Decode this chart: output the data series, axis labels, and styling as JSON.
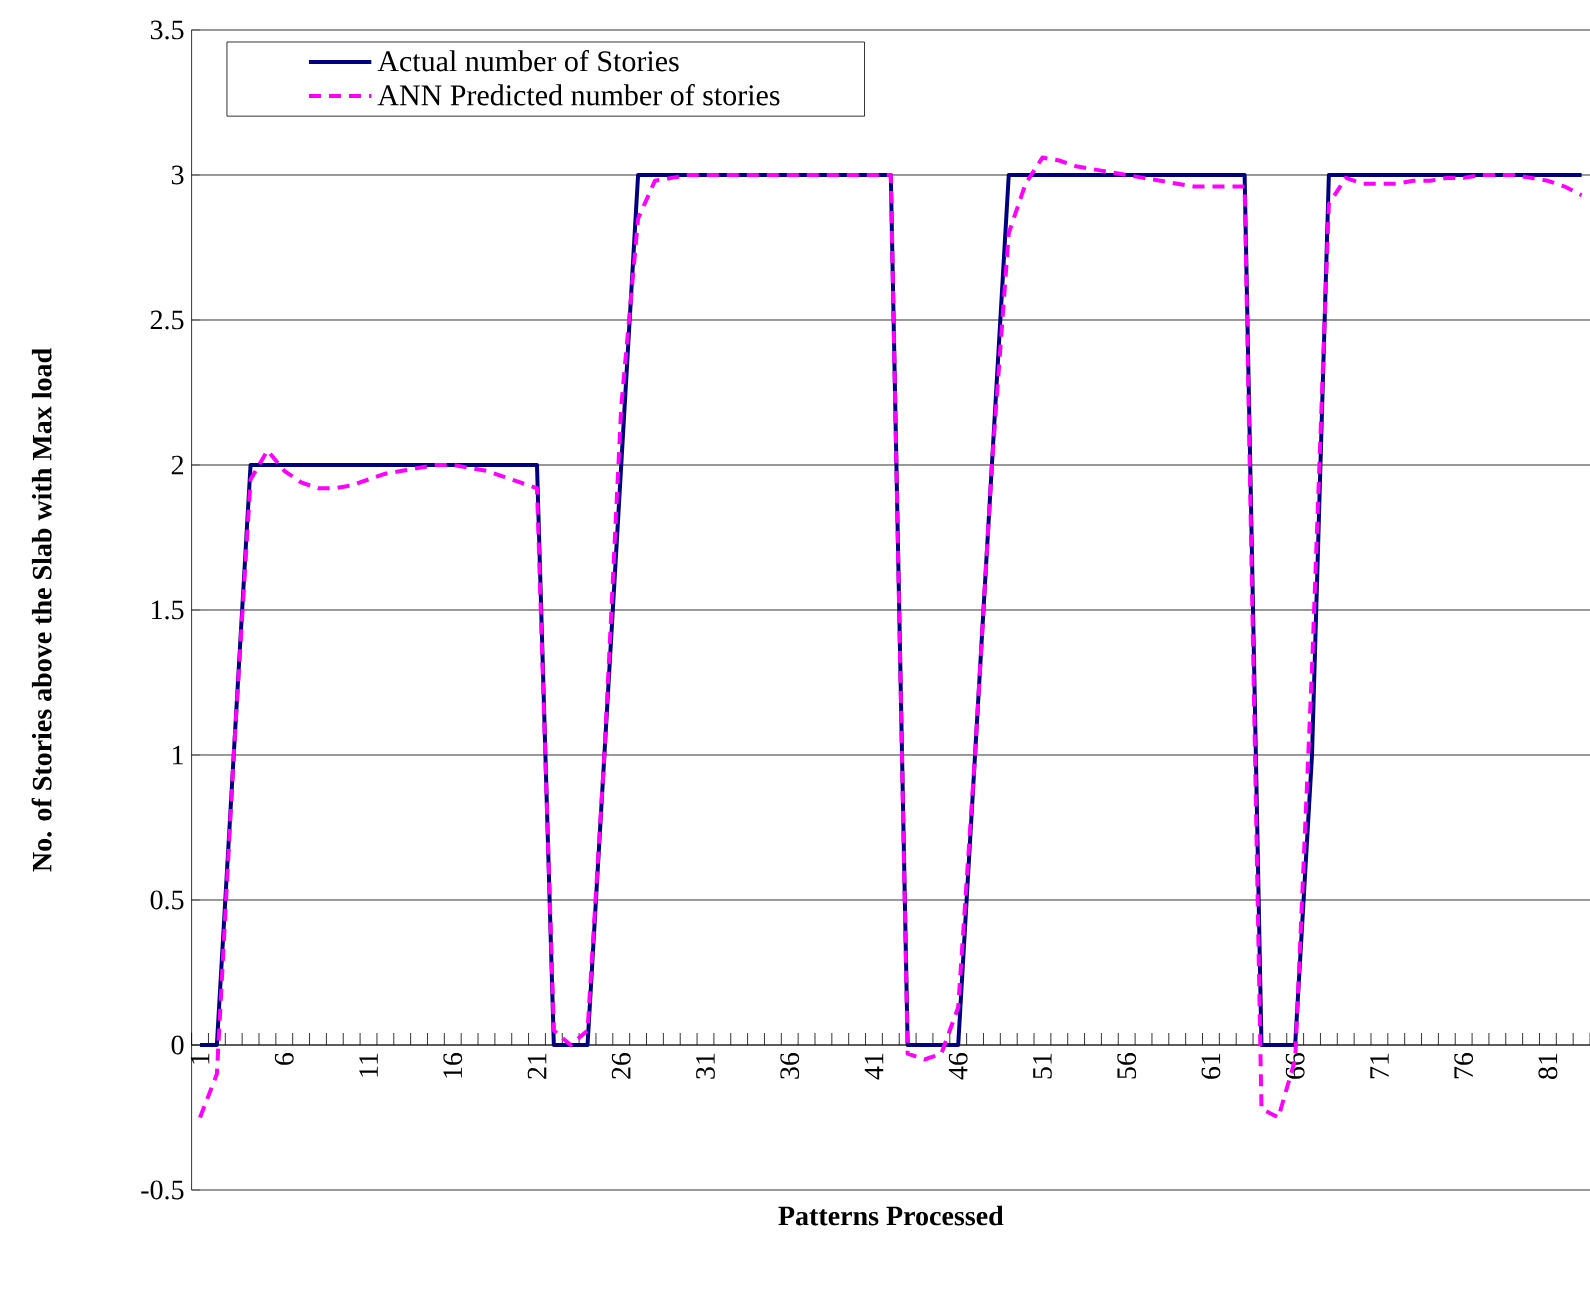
{
  "chart_data": {
    "type": "line",
    "xlabel": "Patterns Processed",
    "ylabel": "No. of Stories above the Slab  with Max load",
    "categories": [
      "1",
      null,
      null,
      null,
      null,
      "6",
      null,
      null,
      null,
      null,
      "11",
      null,
      null,
      null,
      null,
      "16",
      null,
      null,
      null,
      null,
      "21",
      null,
      null,
      null,
      null,
      "26",
      null,
      null,
      null,
      null,
      "31",
      null,
      null,
      null,
      null,
      "36",
      null,
      null,
      null,
      null,
      "41",
      null,
      null,
      null,
      null,
      "46",
      null,
      null,
      null,
      null,
      "51",
      null,
      null,
      null,
      null,
      "56",
      null,
      null,
      null,
      null,
      "61",
      null,
      null,
      null,
      null,
      "66",
      null,
      null,
      null,
      null,
      "71",
      null,
      null,
      null,
      null,
      "76",
      null,
      null,
      null,
      null,
      "81",
      null,
      null
    ],
    "series": [
      {
        "name": "Actual number of Stories",
        "color": "#000080",
        "line_style": "solid",
        "values": [
          0,
          0,
          1,
          2,
          2,
          2,
          2,
          2,
          2,
          2,
          2,
          2,
          2,
          2,
          2,
          2,
          2,
          2,
          2,
          2,
          2,
          0,
          0,
          0,
          1,
          2,
          3,
          3,
          3,
          3,
          3,
          3,
          3,
          3,
          3,
          3,
          3,
          3,
          3,
          3,
          3,
          3,
          0,
          0,
          0,
          0,
          1,
          2,
          3,
          3,
          3,
          3,
          3,
          3,
          3,
          3,
          3,
          3,
          3,
          3,
          3,
          3,
          3,
          0,
          0,
          0,
          1,
          3,
          3,
          3,
          3,
          3,
          3,
          3,
          3,
          3,
          3,
          3,
          3,
          3,
          3,
          3,
          3
        ]
      },
      {
        "name": "ANN Predicted number of stories",
        "color": "#ff00ff",
        "line_style": "dashed",
        "values": [
          -0.25,
          -0.1,
          1.0,
          1.95,
          2.05,
          1.98,
          1.94,
          1.92,
          1.92,
          1.93,
          1.95,
          1.97,
          1.98,
          1.99,
          2.0,
          2.0,
          1.99,
          1.98,
          1.96,
          1.94,
          1.92,
          0.05,
          0.0,
          0.05,
          1.0,
          2.2,
          2.85,
          2.98,
          2.99,
          3,
          3,
          3,
          3,
          3,
          3,
          3,
          3,
          3,
          3,
          3,
          3,
          3.0,
          -0.03,
          -0.05,
          -0.03,
          0.13,
          1.0,
          2.0,
          2.8,
          2.97,
          3.06,
          3.05,
          3.03,
          3.02,
          3.01,
          3.0,
          2.99,
          2.98,
          2.97,
          2.96,
          2.96,
          2.96,
          2.96,
          -0.22,
          -0.25,
          -0.05,
          1.3,
          2.9,
          2.99,
          2.97,
          2.97,
          2.97,
          2.98,
          2.98,
          2.99,
          2.99,
          3.0,
          3.0,
          3.0,
          2.99,
          2.98,
          2.96,
          2.93
        ]
      }
    ],
    "ylim": [
      -0.5,
      3.5
    ],
    "yticks": [
      -0.5,
      0,
      0.5,
      1,
      1.5,
      2,
      2.5,
      3,
      3.5
    ],
    "grid": "y",
    "legend": "top left"
  }
}
